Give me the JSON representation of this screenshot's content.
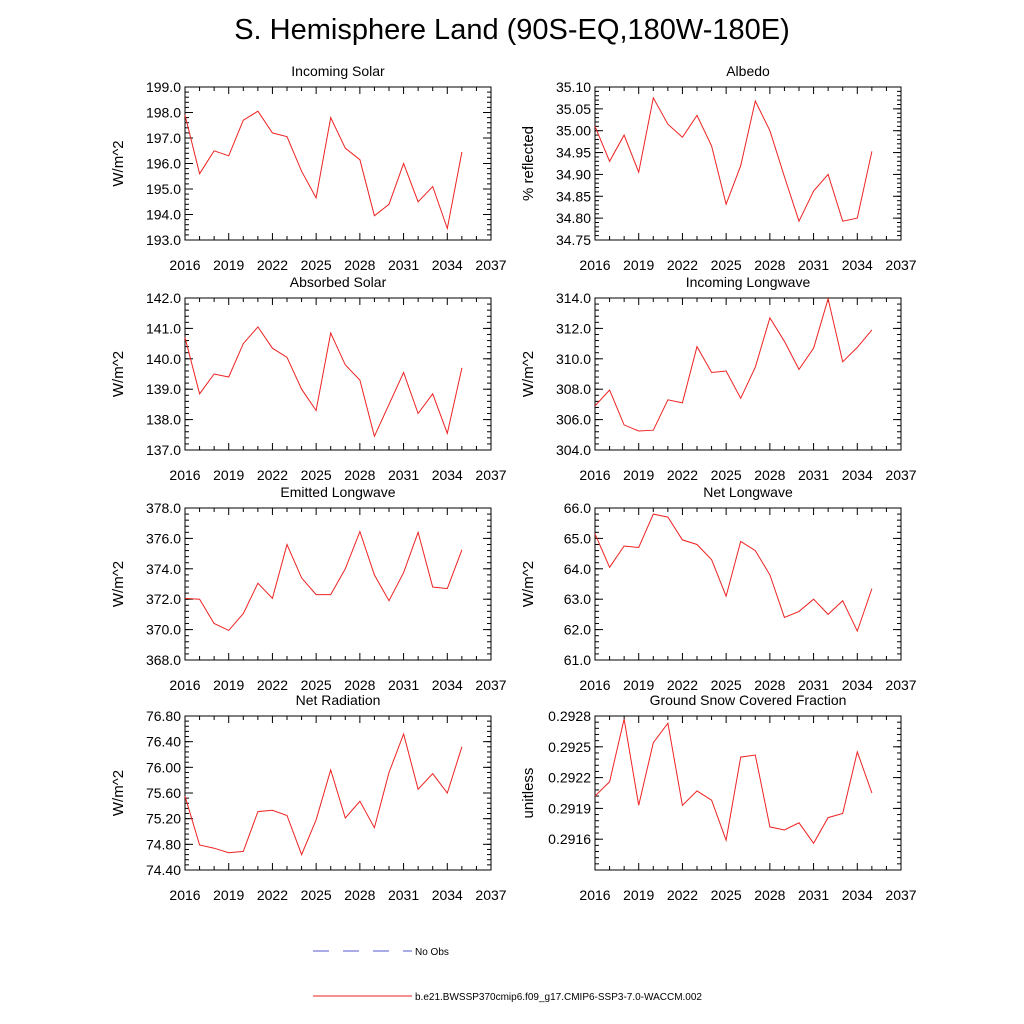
{
  "figure": {
    "title": "S. Hemisphere Land (90S-EQ,180W-180E)",
    "legend": [
      {
        "label": "No Obs",
        "color": "#5555cc",
        "style": "dashed"
      },
      {
        "label": "b.e21.BWSSP370cmip6.f09_g17.CMIP6-SSP3-7.0-WACCM.002",
        "color": "#ee2222",
        "style": "solid"
      }
    ],
    "series_color": "#ee2222"
  },
  "chart_data": [
    {
      "type": "line",
      "title": "Incoming Solar",
      "ylabel": "W/m^2",
      "xlim": [
        2016,
        2037
      ],
      "xticks": [
        2016,
        2019,
        2022,
        2025,
        2028,
        2031,
        2034,
        2037
      ],
      "ylim": [
        193.0,
        199.0
      ],
      "yticks": [
        193.0,
        194.0,
        195.0,
        196.0,
        197.0,
        198.0,
        199.0
      ],
      "ytick_labels": [
        "193.0",
        "194.0",
        "195.0",
        "196.0",
        "197.0",
        "198.0",
        "199.0"
      ],
      "x": [
        2016,
        2017,
        2018,
        2019,
        2020,
        2021,
        2022,
        2023,
        2024,
        2025,
        2026,
        2027,
        2028,
        2029,
        2030,
        2031,
        2032,
        2033,
        2034,
        2035
      ],
      "values": [
        197.9,
        195.6,
        196.5,
        196.3,
        197.7,
        198.05,
        197.2,
        197.05,
        195.7,
        194.65,
        197.8,
        196.6,
        196.15,
        193.95,
        194.4,
        196.0,
        194.5,
        195.1,
        193.45,
        196.45
      ]
    },
    {
      "type": "line",
      "title": "Albedo",
      "ylabel": "% reflected",
      "xlim": [
        2016,
        2037
      ],
      "xticks": [
        2016,
        2019,
        2022,
        2025,
        2028,
        2031,
        2034,
        2037
      ],
      "ylim": [
        34.75,
        35.1
      ],
      "yticks": [
        34.75,
        34.8,
        34.85,
        34.9,
        34.95,
        35.0,
        35.05,
        35.1
      ],
      "ytick_labels": [
        "34.75",
        "34.80",
        "34.85",
        "34.90",
        "34.95",
        "35.00",
        "35.05",
        "35.10"
      ],
      "x": [
        2016,
        2017,
        2018,
        2019,
        2020,
        2021,
        2022,
        2023,
        2024,
        2025,
        2026,
        2027,
        2028,
        2029,
        2030,
        2031,
        2032,
        2033,
        2034,
        2035
      ],
      "values": [
        35.01,
        34.93,
        34.99,
        34.905,
        35.075,
        35.015,
        34.985,
        35.035,
        34.965,
        34.832,
        34.92,
        35.068,
        35.0,
        34.895,
        34.793,
        34.862,
        34.9,
        34.793,
        34.8,
        34.953
      ]
    },
    {
      "type": "line",
      "title": "Absorbed Solar",
      "ylabel": "W/m^2",
      "xlim": [
        2016,
        2037
      ],
      "xticks": [
        2016,
        2019,
        2022,
        2025,
        2028,
        2031,
        2034,
        2037
      ],
      "ylim": [
        137.0,
        142.0
      ],
      "yticks": [
        137.0,
        138.0,
        139.0,
        140.0,
        141.0,
        142.0
      ],
      "ytick_labels": [
        "137.0",
        "138.0",
        "139.0",
        "140.0",
        "141.0",
        "142.0"
      ],
      "x": [
        2016,
        2017,
        2018,
        2019,
        2020,
        2021,
        2022,
        2023,
        2024,
        2025,
        2026,
        2027,
        2028,
        2029,
        2030,
        2031,
        2032,
        2033,
        2034,
        2035
      ],
      "values": [
        140.7,
        138.85,
        139.5,
        139.4,
        140.5,
        141.05,
        140.35,
        140.05,
        139.0,
        138.3,
        140.85,
        139.8,
        139.3,
        137.45,
        138.5,
        139.55,
        138.2,
        138.85,
        137.55,
        139.7
      ]
    },
    {
      "type": "line",
      "title": "Incoming Longwave",
      "ylabel": "W/m^2",
      "xlim": [
        2016,
        2037
      ],
      "xticks": [
        2016,
        2019,
        2022,
        2025,
        2028,
        2031,
        2034,
        2037
      ],
      "ylim": [
        304.0,
        314.0
      ],
      "yticks": [
        304.0,
        306.0,
        308.0,
        310.0,
        312.0,
        314.0
      ],
      "ytick_labels": [
        "304.0",
        "306.0",
        "308.0",
        "310.0",
        "312.0",
        "314.0"
      ],
      "x": [
        2016,
        2017,
        2018,
        2019,
        2020,
        2021,
        2022,
        2023,
        2024,
        2025,
        2026,
        2027,
        2028,
        2029,
        2030,
        2031,
        2032,
        2033,
        2034,
        2035
      ],
      "values": [
        306.9,
        307.95,
        305.65,
        305.25,
        305.3,
        307.3,
        307.1,
        310.8,
        309.1,
        309.2,
        307.4,
        309.45,
        312.7,
        311.15,
        309.3,
        310.7,
        313.95,
        309.8,
        310.75,
        311.9
      ]
    },
    {
      "type": "line",
      "title": "Emitted Longwave",
      "ylabel": "W/m^2",
      "xlim": [
        2016,
        2037
      ],
      "xticks": [
        2016,
        2019,
        2022,
        2025,
        2028,
        2031,
        2034,
        2037
      ],
      "ylim": [
        368.0,
        378.0
      ],
      "yticks": [
        368.0,
        370.0,
        372.0,
        374.0,
        376.0,
        378.0
      ],
      "ytick_labels": [
        "368.0",
        "370.0",
        "372.0",
        "374.0",
        "376.0",
        "378.0"
      ],
      "x": [
        2016,
        2017,
        2018,
        2019,
        2020,
        2021,
        2022,
        2023,
        2024,
        2025,
        2026,
        2027,
        2028,
        2029,
        2030,
        2031,
        2032,
        2033,
        2034,
        2035
      ],
      "values": [
        372.05,
        372.0,
        370.4,
        369.95,
        371.05,
        373.05,
        372.05,
        375.6,
        373.4,
        372.3,
        372.3,
        374.0,
        376.45,
        373.6,
        371.9,
        373.75,
        376.4,
        372.8,
        372.7,
        375.25
      ]
    },
    {
      "type": "line",
      "title": "Net Longwave",
      "ylabel": "W/m^2",
      "xlim": [
        2016,
        2037
      ],
      "xticks": [
        2016,
        2019,
        2022,
        2025,
        2028,
        2031,
        2034,
        2037
      ],
      "ylim": [
        61.0,
        66.0
      ],
      "yticks": [
        61.0,
        62.0,
        63.0,
        64.0,
        65.0,
        66.0
      ],
      "ytick_labels": [
        "61.0",
        "62.0",
        "63.0",
        "64.0",
        "65.0",
        "66.0"
      ],
      "x": [
        2016,
        2017,
        2018,
        2019,
        2020,
        2021,
        2022,
        2023,
        2024,
        2025,
        2026,
        2027,
        2028,
        2029,
        2030,
        2031,
        2032,
        2033,
        2034,
        2035
      ],
      "values": [
        65.15,
        64.05,
        64.75,
        64.7,
        65.8,
        65.7,
        64.95,
        64.8,
        64.3,
        63.1,
        64.9,
        64.6,
        63.8,
        62.4,
        62.6,
        63.0,
        62.5,
        62.95,
        61.95,
        63.35
      ]
    },
    {
      "type": "line",
      "title": "Net Radiation",
      "ylabel": "W/m^2",
      "xlim": [
        2016,
        2037
      ],
      "xticks": [
        2016,
        2019,
        2022,
        2025,
        2028,
        2031,
        2034,
        2037
      ],
      "ylim": [
        74.4,
        76.8
      ],
      "yticks": [
        74.4,
        74.8,
        75.2,
        75.6,
        76.0,
        76.4,
        76.8
      ],
      "ytick_labels": [
        "74.40",
        "74.80",
        "75.20",
        "75.60",
        "76.00",
        "76.40",
        "76.80"
      ],
      "x": [
        2016,
        2017,
        2018,
        2019,
        2020,
        2021,
        2022,
        2023,
        2024,
        2025,
        2026,
        2027,
        2028,
        2029,
        2030,
        2031,
        2032,
        2033,
        2034,
        2035
      ],
      "values": [
        75.55,
        74.79,
        74.74,
        74.67,
        74.69,
        75.31,
        75.33,
        75.25,
        74.64,
        75.18,
        75.96,
        75.21,
        75.47,
        75.06,
        75.92,
        76.52,
        75.66,
        75.9,
        75.6,
        76.32
      ]
    },
    {
      "type": "line",
      "title": "Ground Snow Covered Fraction",
      "ylabel": "unitless",
      "xlim": [
        2016,
        2037
      ],
      "xticks": [
        2016,
        2019,
        2022,
        2025,
        2028,
        2031,
        2034,
        2037
      ],
      "ylim": [
        0.2913,
        0.2928
      ],
      "yticks": [
        0.2916,
        0.2919,
        0.2922,
        0.2925,
        0.2928
      ],
      "ytick_labels": [
        "0.2916",
        "0.2919",
        "0.2922",
        "0.2925",
        "0.2928"
      ],
      "x": [
        2016,
        2017,
        2018,
        2019,
        2020,
        2021,
        2022,
        2023,
        2024,
        2025,
        2026,
        2027,
        2028,
        2029,
        2030,
        2031,
        2032,
        2033,
        2034,
        2035
      ],
      "values": [
        0.29202,
        0.29216,
        0.29277,
        0.29193,
        0.29254,
        0.29273,
        0.29193,
        0.29207,
        0.29198,
        0.29159,
        0.2924,
        0.29242,
        0.29172,
        0.29169,
        0.29176,
        0.29156,
        0.29181,
        0.29185,
        0.29245,
        0.29205
      ]
    }
  ]
}
